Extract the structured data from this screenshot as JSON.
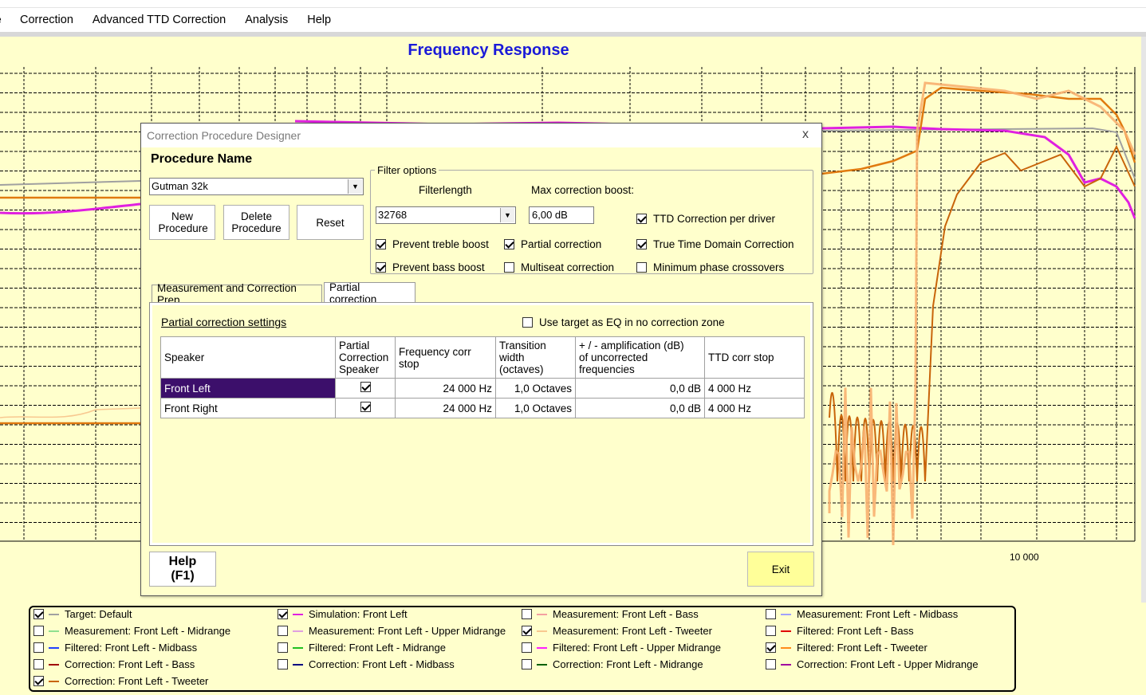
{
  "menu": {
    "edge": "e",
    "items": [
      "Correction",
      "Advanced TTD Correction",
      "Analysis",
      "Help"
    ]
  },
  "chart": {
    "title": "Frequency Response",
    "x_tick_label": "10 000"
  },
  "dialog": {
    "title": "Correction Procedure Designer",
    "close": "x",
    "procedure_name_label": "Procedure Name",
    "procedure_value": "Gutman 32k",
    "buttons": {
      "new": "New Procedure",
      "delete": "Delete Procedure",
      "reset": "Reset",
      "help": "Help\n(F1)",
      "exit": "Exit"
    },
    "filter_options": {
      "legend": "Filter options",
      "filterlength_label": "Filterlength",
      "filterlength_value": "32768",
      "max_boost_label": "Max correction boost:",
      "max_boost_value": "6,00 dB",
      "checks": [
        {
          "label": "TTD Correction per driver",
          "checked": true
        },
        {
          "label": "Prevent treble boost",
          "checked": true
        },
        {
          "label": "Partial correction",
          "checked": true
        },
        {
          "label": "True Time Domain Correction",
          "checked": true
        },
        {
          "label": "Prevent bass boost",
          "checked": true
        },
        {
          "label": "Multiseat correction",
          "checked": false
        },
        {
          "label": "Minimum phase crossovers",
          "checked": false
        }
      ]
    },
    "tabs": [
      "Measurement and Correction Prep",
      "Partial correction"
    ],
    "partial": {
      "heading": "Partial correction settings",
      "use_target_label": "Use target as EQ in no correction zone",
      "columns": [
        "Speaker",
        "Partial Correction Speaker",
        "Frequency corr stop",
        "Transition width (octaves)",
        "+ / - amplification (dB) of uncorrected frequencies",
        "TTD corr stop"
      ],
      "rows": [
        {
          "speaker": "Front Left",
          "partial": true,
          "freq": "24 000 Hz",
          "width": "1,0 Octaves",
          "amp": "0,0 dB",
          "ttd": "4 000 Hz"
        },
        {
          "speaker": "Front Right",
          "partial": true,
          "freq": "24 000 Hz",
          "width": "1,0 Octaves",
          "amp": "0,0 dB",
          "ttd": "4 000 Hz"
        }
      ]
    }
  },
  "legend": [
    {
      "label": "Target: Default",
      "checked": true,
      "color": "#a0a0a0"
    },
    {
      "label": "Simulation: Front Left",
      "checked": true,
      "color": "#e020e0"
    },
    {
      "label": "Measurement: Front Left - Bass",
      "checked": false,
      "color": "#f4a0a0"
    },
    {
      "label": "Measurement: Front Left - Midbass",
      "checked": false,
      "color": "#a0a0ff"
    },
    {
      "label": "Measurement: Front Left - Midrange",
      "checked": false,
      "color": "#90e090"
    },
    {
      "label": "Measurement: Front Left - Upper Midrange",
      "checked": false,
      "color": "#e0a0e0"
    },
    {
      "label": "Measurement: Front Left - Tweeter",
      "checked": true,
      "color": "#f8c890"
    },
    {
      "label": "Filtered: Front Left - Bass",
      "checked": false,
      "color": "#e00000"
    },
    {
      "label": "Filtered: Front Left - Midbass",
      "checked": false,
      "color": "#2040ff"
    },
    {
      "label": "Filtered: Front Left - Midrange",
      "checked": false,
      "color": "#20c020"
    },
    {
      "label": "Filtered: Front Left - Upper Midrange",
      "checked": false,
      "color": "#ff20ff"
    },
    {
      "label": "Filtered: Front Left - Tweeter",
      "checked": true,
      "color": "#ff8c1a"
    },
    {
      "label": "Correction: Front Left - Bass",
      "checked": false,
      "color": "#a00000"
    },
    {
      "label": "Correction: Front Left - Midbass",
      "checked": false,
      "color": "#000080"
    },
    {
      "label": "Correction: Front Left - Midrange",
      "checked": false,
      "color": "#006000"
    },
    {
      "label": "Correction: Front Left - Upper Midrange",
      "checked": false,
      "color": "#a000a0"
    },
    {
      "label": "Correction: Front Left - Tweeter",
      "checked": true,
      "color": "#c86400"
    }
  ]
}
